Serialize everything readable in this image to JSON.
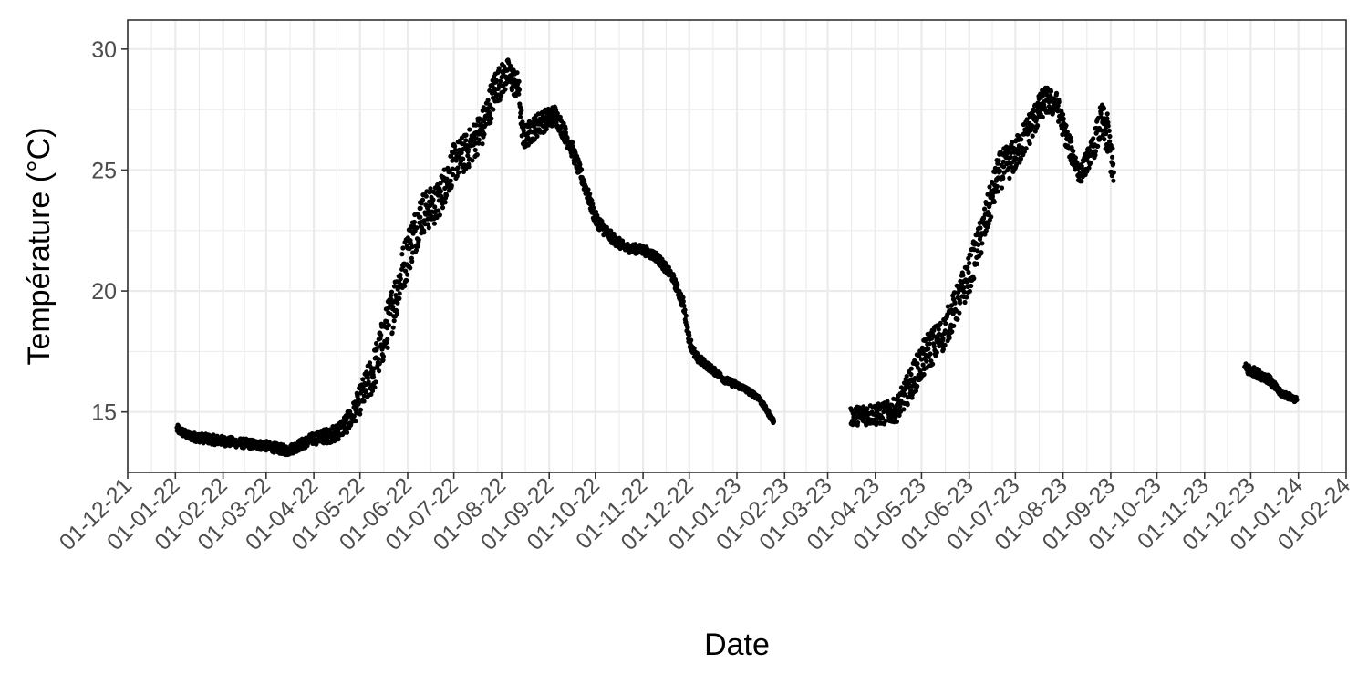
{
  "chart_data": {
    "type": "scatter",
    "title": "",
    "xlabel": "Date",
    "ylabel": "Température (°C)",
    "xlim": [
      "2021-12-01",
      "2024-02-01"
    ],
    "ylim": [
      12.5,
      31.2
    ],
    "y_ticks": [
      15,
      20,
      25,
      30
    ],
    "x_ticks": [
      {
        "date": "2021-12-01",
        "label": "01-12-21"
      },
      {
        "date": "2022-01-01",
        "label": "01-01-22"
      },
      {
        "date": "2022-02-01",
        "label": "01-02-22"
      },
      {
        "date": "2022-03-01",
        "label": "01-03-22"
      },
      {
        "date": "2022-04-01",
        "label": "01-04-22"
      },
      {
        "date": "2022-05-01",
        "label": "01-05-22"
      },
      {
        "date": "2022-06-01",
        "label": "01-06-22"
      },
      {
        "date": "2022-07-01",
        "label": "01-07-22"
      },
      {
        "date": "2022-08-01",
        "label": "01-08-22"
      },
      {
        "date": "2022-09-01",
        "label": "01-09-22"
      },
      {
        "date": "2022-10-01",
        "label": "01-10-22"
      },
      {
        "date": "2022-11-01",
        "label": "01-11-22"
      },
      {
        "date": "2022-12-01",
        "label": "01-12-22"
      },
      {
        "date": "2023-01-01",
        "label": "01-01-23"
      },
      {
        "date": "2023-02-01",
        "label": "01-02-23"
      },
      {
        "date": "2023-03-01",
        "label": "01-03-23"
      },
      {
        "date": "2023-04-01",
        "label": "01-04-23"
      },
      {
        "date": "2023-05-01",
        "label": "01-05-23"
      },
      {
        "date": "2023-06-01",
        "label": "01-06-23"
      },
      {
        "date": "2023-07-01",
        "label": "01-07-23"
      },
      {
        "date": "2023-08-01",
        "label": "01-08-23"
      },
      {
        "date": "2023-09-01",
        "label": "01-09-23"
      },
      {
        "date": "2023-10-01",
        "label": "01-10-23"
      },
      {
        "date": "2023-11-01",
        "label": "01-11-23"
      },
      {
        "date": "2023-12-01",
        "label": "01-12-23"
      },
      {
        "date": "2024-01-01",
        "label": "01-01-24"
      },
      {
        "date": "2024-02-01",
        "label": "01-02-24"
      }
    ],
    "grid": true,
    "marker_color": "#000000",
    "segments": [
      {
        "points": [
          [
            "2022-01-02",
            14.3
          ],
          [
            "2022-01-10",
            14.0
          ],
          [
            "2022-01-20",
            13.9
          ],
          [
            "2022-02-01",
            13.8
          ],
          [
            "2022-02-15",
            13.7
          ],
          [
            "2022-03-01",
            13.6
          ],
          [
            "2022-03-15",
            13.4
          ],
          [
            "2022-04-01",
            13.9
          ],
          [
            "2022-04-15",
            14.1
          ],
          [
            "2022-04-25",
            14.7
          ],
          [
            "2022-05-01",
            15.5
          ],
          [
            "2022-05-10",
            16.7
          ],
          [
            "2022-05-20",
            18.8
          ],
          [
            "2022-06-01",
            21.6
          ],
          [
            "2022-06-10",
            23.2
          ],
          [
            "2022-06-20",
            23.6
          ],
          [
            "2022-07-01",
            25.3
          ],
          [
            "2022-07-10",
            25.8
          ],
          [
            "2022-07-20",
            26.8
          ],
          [
            "2022-07-28",
            28.4
          ],
          [
            "2022-08-05",
            29.0
          ],
          [
            "2022-08-12",
            28.4
          ],
          [
            "2022-08-15",
            26.3
          ],
          [
            "2022-08-25",
            26.9
          ],
          [
            "2022-09-05",
            27.3
          ],
          [
            "2022-09-15",
            26.0
          ],
          [
            "2022-09-25",
            24.2
          ],
          [
            "2022-10-01",
            23.0
          ],
          [
            "2022-10-10",
            22.3
          ],
          [
            "2022-10-20",
            21.8
          ],
          [
            "2022-11-01",
            21.7
          ],
          [
            "2022-11-10",
            21.4
          ],
          [
            "2022-11-20",
            20.6
          ],
          [
            "2022-11-27",
            19.5
          ],
          [
            "2022-12-01",
            18.0
          ],
          [
            "2022-12-05",
            17.3
          ],
          [
            "2022-12-15",
            16.8
          ],
          [
            "2022-12-25",
            16.3
          ],
          [
            "2023-01-05",
            16.0
          ],
          [
            "2023-01-15",
            15.6
          ],
          [
            "2023-01-25",
            14.6
          ]
        ],
        "band": [
          0.18,
          0.18,
          0.2,
          0.2,
          0.2,
          0.2,
          0.2,
          0.25,
          0.35,
          0.45,
          0.6,
          0.9,
          1.0,
          1.0,
          0.9,
          0.8,
          0.8,
          0.8,
          0.8,
          0.8,
          0.6,
          0.6,
          0.5,
          0.5,
          0.4,
          0.35,
          0.3,
          0.3,
          0.25,
          0.2,
          0.2,
          0.2,
          0.2,
          0.25,
          0.25,
          0.2,
          0.15,
          0.15,
          0.12,
          0.12,
          0.1
        ]
      },
      {
        "points": [
          [
            "2023-03-16",
            14.8
          ],
          [
            "2023-03-25",
            14.9
          ],
          [
            "2023-04-05",
            14.9
          ],
          [
            "2023-04-15",
            15.1
          ],
          [
            "2023-04-25",
            16.3
          ],
          [
            "2023-05-05",
            17.5
          ],
          [
            "2023-05-15",
            18.2
          ],
          [
            "2023-05-25",
            19.6
          ],
          [
            "2023-06-01",
            20.7
          ],
          [
            "2023-06-10",
            22.5
          ],
          [
            "2023-06-20",
            24.9
          ],
          [
            "2023-07-01",
            25.6
          ],
          [
            "2023-07-10",
            26.7
          ],
          [
            "2023-07-20",
            27.9
          ],
          [
            "2023-07-28",
            27.7
          ],
          [
            "2023-08-05",
            26.0
          ],
          [
            "2023-08-12",
            24.8
          ],
          [
            "2023-08-20",
            25.8
          ],
          [
            "2023-08-26",
            27.0
          ],
          [
            "2023-08-30",
            26.4
          ],
          [
            "2023-09-03",
            24.9
          ]
        ],
        "band": [
          0.35,
          0.45,
          0.45,
          0.5,
          0.7,
          0.8,
          0.7,
          0.8,
          0.8,
          0.8,
          0.8,
          0.7,
          0.7,
          0.6,
          0.5,
          0.5,
          0.4,
          0.5,
          0.8,
          0.9,
          0.7
        ]
      },
      {
        "points": [
          [
            "2023-11-27",
            16.8
          ],
          [
            "2023-12-05",
            16.6
          ],
          [
            "2023-12-12",
            16.4
          ],
          [
            "2023-12-20",
            15.8
          ],
          [
            "2023-12-31",
            15.5
          ]
        ],
        "band": [
          0.25,
          0.2,
          0.2,
          0.15,
          0.12
        ]
      }
    ]
  }
}
